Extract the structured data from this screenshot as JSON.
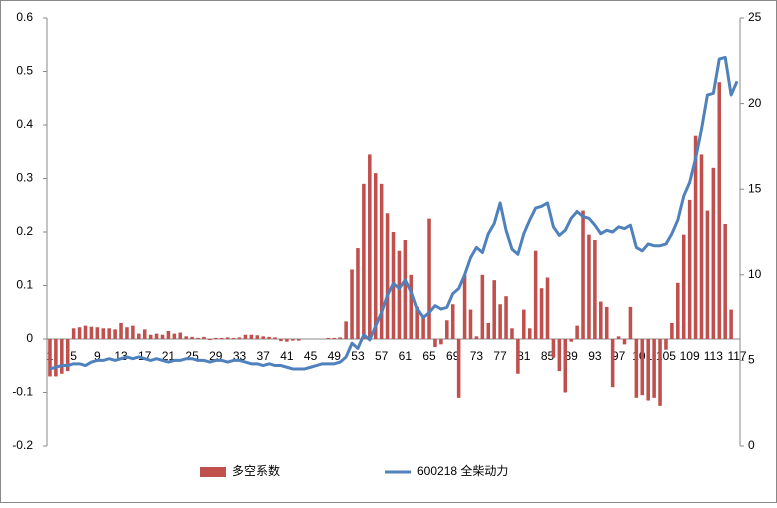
{
  "chart_data": {
    "type": "bar_line",
    "categories": [
      1,
      null,
      null,
      null,
      5,
      null,
      null,
      null,
      9,
      null,
      null,
      null,
      13,
      null,
      null,
      null,
      17,
      null,
      null,
      null,
      21,
      null,
      null,
      null,
      25,
      null,
      null,
      null,
      29,
      null,
      null,
      null,
      33,
      null,
      null,
      null,
      37,
      null,
      null,
      null,
      41,
      null,
      null,
      null,
      45,
      null,
      null,
      null,
      49,
      null,
      null,
      null,
      53,
      null,
      null,
      null,
      57,
      null,
      null,
      null,
      61,
      null,
      null,
      null,
      65,
      null,
      null,
      null,
      69,
      null,
      null,
      null,
      73,
      null,
      null,
      null,
      77,
      null,
      null,
      null,
      81,
      null,
      null,
      null,
      85,
      null,
      null,
      null,
      89,
      null,
      null,
      null,
      93,
      null,
      null,
      null,
      97,
      null,
      null,
      null,
      101,
      null,
      null,
      null,
      105,
      null,
      null,
      null,
      109,
      null,
      null,
      null,
      113,
      null,
      null,
      null,
      117
    ],
    "series": [
      {
        "name": "多空系数",
        "type": "bar",
        "color": "#c0504d",
        "values": [
          -0.07,
          -0.07,
          -0.065,
          -0.06,
          0.02,
          0.022,
          0.025,
          0.023,
          0.022,
          0.02,
          0.02,
          0.018,
          0.03,
          0.022,
          0.025,
          0.01,
          0.018,
          0.008,
          0.01,
          0.008,
          0.015,
          0.01,
          0.012,
          0.005,
          0.004,
          0.002,
          0.004,
          -0.002,
          0.002,
          0.002,
          0.003,
          0.002,
          0.003,
          0.008,
          0.008,
          0.007,
          0.005,
          0.004,
          0.003,
          -0.004,
          -0.005,
          -0.003,
          -0.003,
          0,
          0,
          0,
          0,
          0.002,
          0.002,
          0.003,
          0.033,
          0.13,
          0.17,
          0.29,
          0.345,
          0.31,
          0.29,
          0.235,
          0.2,
          0.165,
          0.185,
          0.12,
          0.06,
          0.045,
          0.225,
          -0.015,
          -0.01,
          0.035,
          0.065,
          -0.11,
          0.12,
          0.055,
          0.005,
          0.12,
          0.03,
          0.11,
          0.065,
          0.08,
          0.02,
          -0.065,
          0.055,
          0.02,
          0.165,
          0.095,
          0.115,
          -0.035,
          -0.06,
          -0.1,
          -0.005,
          0.025,
          0.24,
          0.195,
          0.185,
          0.07,
          0.06,
          -0.09,
          0.005,
          -0.01,
          0.06,
          -0.11,
          -0.105,
          -0.115,
          -0.11,
          -0.125,
          -0.02,
          0.03,
          0.105,
          0.195,
          0.26,
          0.38,
          0.345,
          0.24,
          0.32,
          0.48,
          0.215,
          0.055,
          0
        ]
      },
      {
        "name": "600218 全柴动力",
        "type": "line",
        "axis": "y2",
        "color": "#4f81bd",
        "values": [
          4.5,
          4.6,
          4.7,
          4.7,
          4.8,
          4.8,
          4.7,
          4.9,
          5.0,
          5.0,
          5.1,
          5.0,
          5.1,
          5.2,
          5.1,
          5.2,
          5.1,
          5.0,
          5.1,
          5.0,
          4.9,
          5.0,
          5.0,
          5.1,
          5.1,
          5.0,
          5.0,
          4.9,
          5.0,
          5.0,
          4.9,
          5.0,
          5.0,
          4.9,
          4.8,
          4.8,
          4.7,
          4.8,
          4.7,
          4.7,
          4.6,
          4.5,
          4.5,
          4.5,
          4.6,
          4.7,
          4.8,
          4.8,
          4.8,
          4.9,
          5.2,
          6.0,
          5.7,
          6.5,
          6.2,
          7.0,
          7.8,
          8.8,
          9.5,
          9.2,
          9.7,
          9.0,
          8.0,
          7.5,
          7.8,
          8.2,
          8.0,
          8.1,
          8.9,
          9.2,
          10.0,
          11.0,
          11.6,
          11.3,
          12.4,
          13.0,
          14.2,
          12.6,
          11.5,
          11.2,
          12.4,
          13.2,
          13.9,
          14.0,
          14.2,
          12.8,
          12.3,
          12.6,
          13.3,
          13.7,
          13.4,
          13.3,
          12.9,
          12.4,
          12.6,
          12.5,
          12.8,
          12.7,
          12.9,
          11.6,
          11.4,
          11.8,
          11.7,
          11.7,
          11.8,
          12.4,
          13.2,
          14.6,
          15.4,
          16.8,
          18.5,
          20.5,
          20.6,
          22.6,
          22.7,
          20.5,
          21.3
        ]
      }
    ],
    "ylim": [
      -0.2,
      0.6
    ],
    "yticks": [
      -0.2,
      -0.1,
      0,
      0.1,
      0.2,
      0.3,
      0.4,
      0.5,
      0.6
    ],
    "y2lim": [
      0,
      25
    ],
    "y2ticks": [
      0,
      5,
      10,
      15,
      20,
      25
    ],
    "legend": "bottom"
  }
}
